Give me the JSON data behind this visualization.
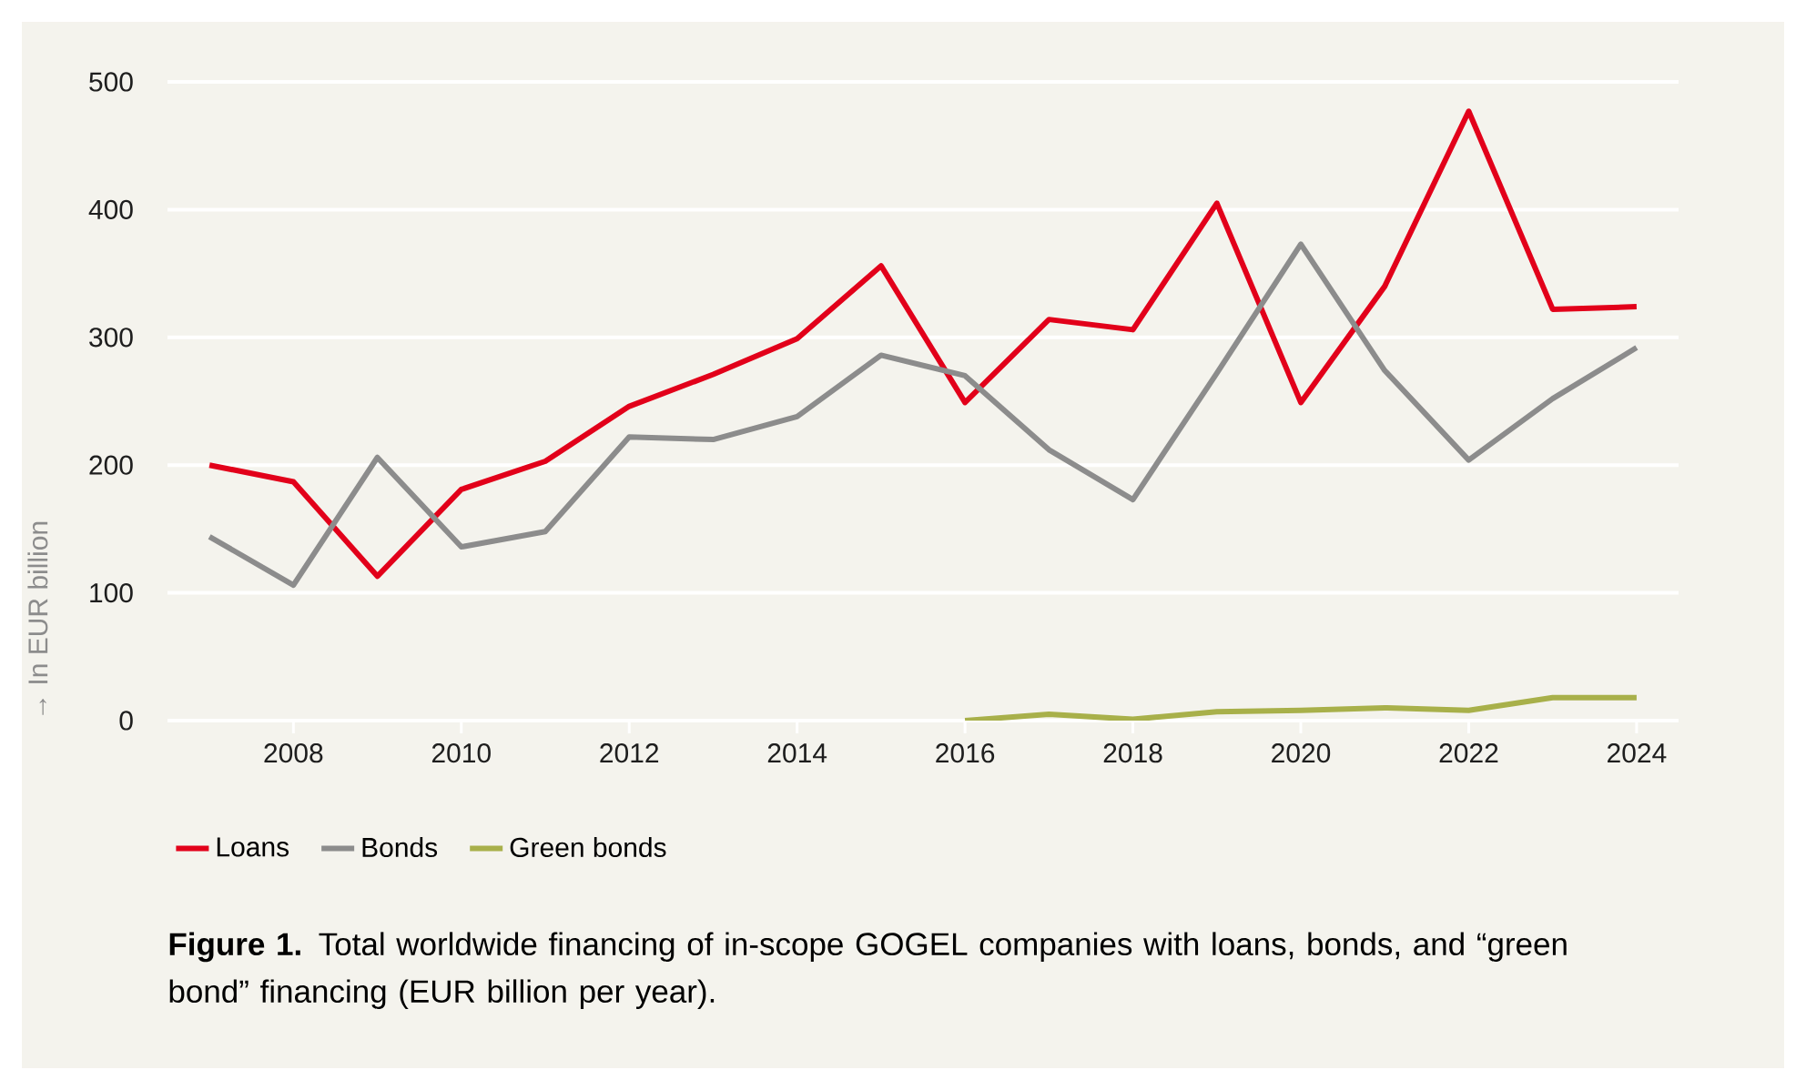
{
  "chart_data": {
    "type": "line",
    "title": "**Figure 1.** Total worldwide financing of in-scope GOGEL companies with loans, bonds, and “green bond” financing (EUR billion per year).",
    "ylabel": "→ In EUR billion",
    "x": [
      2007,
      2008,
      2009,
      2010,
      2011,
      2012,
      2013,
      2014,
      2015,
      2016,
      2017,
      2018,
      2019,
      2020,
      2021,
      2022,
      2023,
      2024
    ],
    "series": [
      {
        "name": "Loans",
        "color": "#e2001a",
        "values": [
          200,
          187,
          113,
          181,
          203,
          246,
          271,
          299,
          356,
          249,
          314,
          306,
          405,
          249,
          340,
          477,
          322,
          324
        ]
      },
      {
        "name": "Bonds",
        "color": "#8c8c8c",
        "values": [
          144,
          106,
          206,
          136,
          148,
          222,
          220,
          238,
          286,
          270,
          212,
          173,
          272,
          373,
          274,
          204,
          252,
          292
        ]
      },
      {
        "name": "Green bonds",
        "color": "#a8b04a",
        "x": [
          2016,
          2017,
          2018,
          2019,
          2020,
          2021,
          2022,
          2023,
          2024
        ],
        "values": [
          0,
          5,
          1,
          7,
          8,
          10,
          8,
          18,
          18
        ]
      }
    ],
    "xlim": [
      2006.5,
      2024.5
    ],
    "ylim": [
      0,
      500
    ],
    "xticks": [
      2008,
      2010,
      2012,
      2014,
      2016,
      2018,
      2020,
      2022,
      2024
    ],
    "yticks": [
      0,
      100,
      200,
      300,
      400,
      500
    ],
    "grid": "y",
    "legend": "bottom"
  }
}
